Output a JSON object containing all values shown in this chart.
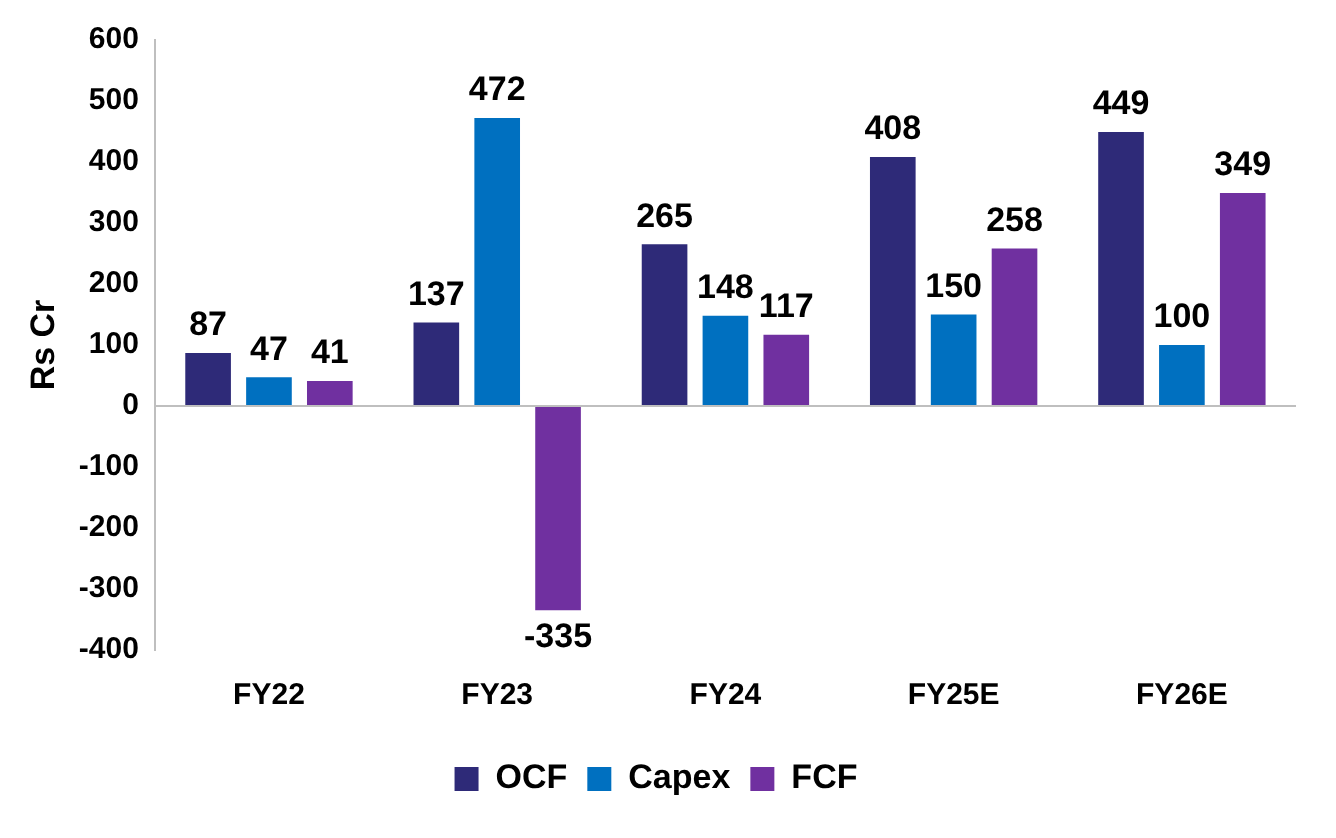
{
  "chart_data": {
    "type": "bar",
    "ylabel": "Rs Cr",
    "categories": [
      "FY22",
      "FY23",
      "FY24",
      "FY25E",
      "FY26E"
    ],
    "series": [
      {
        "name": "OCF",
        "color": "#2e2a78",
        "values": [
          87,
          137,
          265,
          408,
          449
        ]
      },
      {
        "name": "Capex",
        "color": "#0070c0",
        "values": [
          47,
          472,
          148,
          150,
          100
        ]
      },
      {
        "name": "FCF",
        "color": "#7030a0",
        "values": [
          41,
          -335,
          117,
          258,
          349
        ]
      }
    ],
    "ylim": [
      -400,
      600
    ],
    "yticks": [
      -400,
      -300,
      -200,
      -100,
      0,
      100,
      200,
      300,
      400,
      500,
      600
    ],
    "grid": false,
    "ref_lines": [
      {
        "axis": "y",
        "value": 0,
        "color": "#bfbfbf"
      }
    ],
    "legend": "bottom",
    "data_labels": true
  }
}
